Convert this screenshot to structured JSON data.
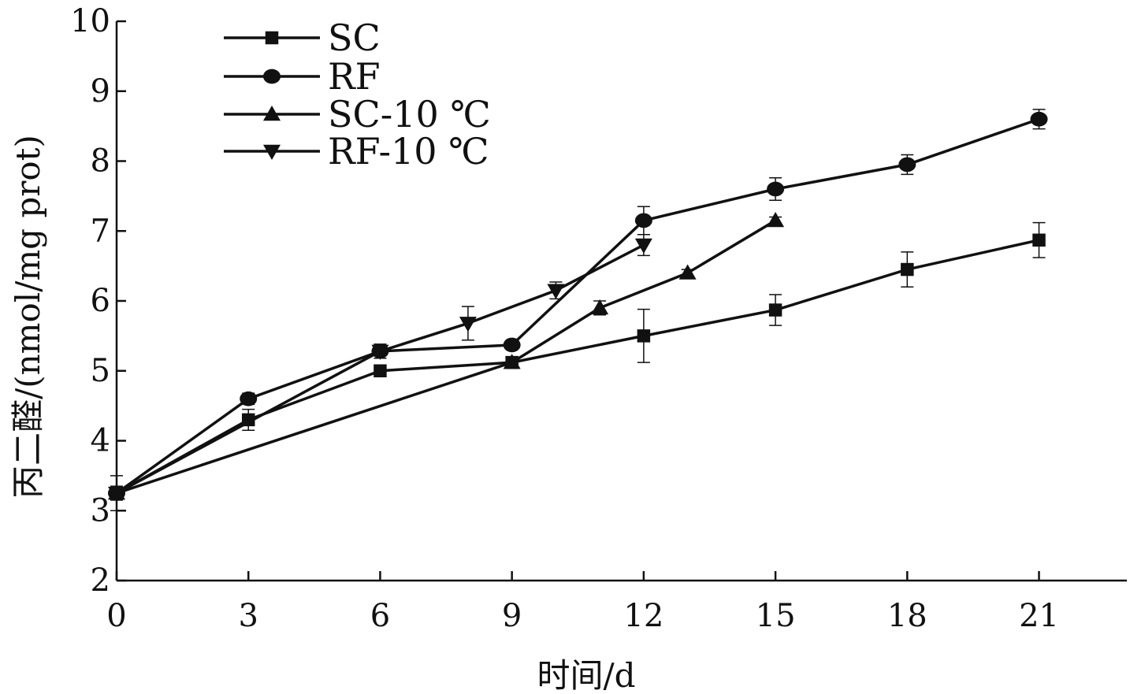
{
  "chart_data": {
    "type": "line",
    "xlabel": "时间/d",
    "ylabel": "丙二醛/(nmol/mg prot)",
    "xlim": [
      0,
      23
    ],
    "ylim": [
      2,
      10
    ],
    "xticks": [
      0,
      3,
      6,
      9,
      12,
      15,
      18,
      21
    ],
    "yticks": [
      2,
      3,
      4,
      5,
      6,
      7,
      8,
      9,
      10
    ],
    "grid": false,
    "legend_position": "top-left",
    "series": [
      {
        "name": "SC",
        "marker": "square",
        "color": "#111111",
        "x": [
          0,
          3,
          6,
          9,
          12,
          15,
          18,
          21
        ],
        "y": [
          3.25,
          4.3,
          5.0,
          5.12,
          5.5,
          5.87,
          6.45,
          6.87
        ],
        "error": [
          0.25,
          0.15,
          0.06,
          0.06,
          0.38,
          0.22,
          0.25,
          0.25
        ]
      },
      {
        "name": "RF",
        "marker": "circle",
        "color": "#111111",
        "x": [
          0,
          3,
          6,
          9,
          12,
          15,
          18,
          21
        ],
        "y": [
          3.25,
          4.6,
          5.28,
          5.37,
          7.15,
          7.6,
          7.95,
          8.6
        ],
        "error": [
          0.1,
          0.08,
          0.1,
          0.05,
          0.2,
          0.16,
          0.14,
          0.14
        ]
      },
      {
        "name": "SC-10 ℃",
        "marker": "triangle-up",
        "color": "#111111",
        "x": [
          0,
          9,
          11,
          13,
          15
        ],
        "y": [
          3.25,
          5.12,
          5.9,
          6.4,
          7.15
        ],
        "error": [
          0.05,
          0.05,
          0.1,
          0.05,
          0.05
        ]
      },
      {
        "name": "RF-10 ℃",
        "marker": "triangle-down",
        "color": "#111111",
        "x": [
          0,
          6,
          8,
          10,
          12
        ],
        "y": [
          3.25,
          5.28,
          5.68,
          6.15,
          6.8
        ],
        "error": [
          0.05,
          0.1,
          0.24,
          0.12,
          0.15
        ]
      }
    ]
  }
}
